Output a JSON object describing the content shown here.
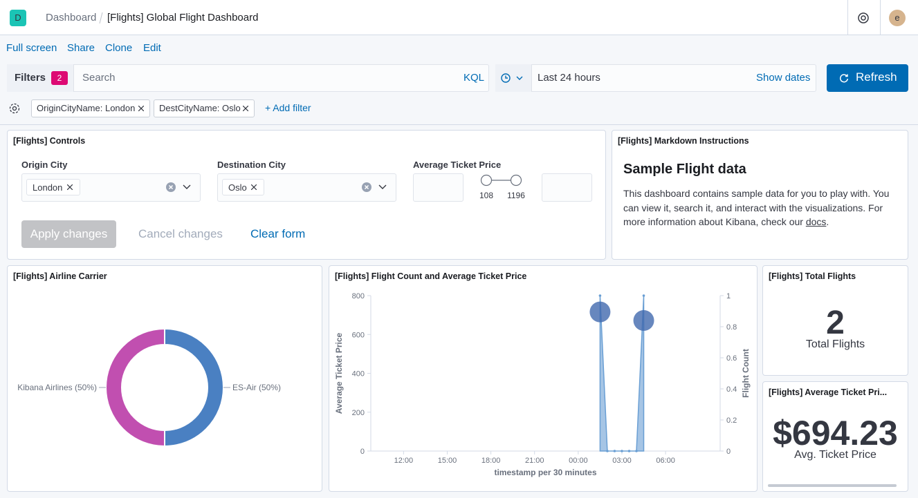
{
  "header": {
    "logo": "D",
    "breadcrumbs": [
      "Dashboard",
      "[Flights] Global Flight Dashboard"
    ],
    "avatar": "e"
  },
  "menu": [
    "Full screen",
    "Share",
    "Clone",
    "Edit"
  ],
  "query_bar": {
    "filters_label": "Filters",
    "filter_count": 2,
    "search_placeholder": "Search",
    "language": "KQL",
    "time_range": "Last 24 hours",
    "show_dates": "Show dates",
    "refresh": "Refresh"
  },
  "filters": [
    "OriginCityName: London",
    "DestCityName: Oslo"
  ],
  "add_filter": "+ Add filter",
  "controls": {
    "title": "[Flights] Controls",
    "origin": {
      "label": "Origin City",
      "value": "London"
    },
    "destination": {
      "label": "Destination City",
      "value": "Oslo"
    },
    "price": {
      "label": "Average Ticket Price",
      "min": 108,
      "max": 1196
    },
    "apply": "Apply changes",
    "cancel": "Cancel changes",
    "clear": "Clear form"
  },
  "markdown": {
    "title": "[Flights] Markdown Instructions",
    "heading": "Sample Flight data",
    "text": "This dashboard contains sample data for you to play with. You can view it, search it, and interact with the visualizations. For more information about Kibana, check our ",
    "link": "docs",
    "end": "."
  },
  "total_flights": {
    "title": "[Flights] Total Flights",
    "value": 2,
    "label": "Total Flights"
  },
  "avg_price": {
    "title": "[Flights] Average Ticket Pri...",
    "value": "$694.23",
    "label": "Avg. Ticket Price"
  },
  "chart_data": [
    {
      "type": "pie",
      "title": "[Flights] Airline Carrier",
      "donut": true,
      "categories": [
        "ES-Air",
        "Kibana Airlines"
      ],
      "values": [
        50,
        50
      ],
      "value_labels": [
        "ES-Air (50%)",
        "Kibana Airlines (50%)"
      ],
      "colors": [
        "#4a80c2",
        "#c14fb0"
      ]
    },
    {
      "type": "line",
      "title": "[Flights] Flight Count and Average Ticket Price",
      "xlabel": "timestamp per 30 minutes",
      "x": [
        25.5,
        26,
        26.5,
        27,
        27.5,
        28,
        28.5
      ],
      "xlim": [
        9.75,
        33.75
      ],
      "xticks": [
        {
          "value": 12,
          "label": "12:00"
        },
        {
          "value": 15,
          "label": "15:00"
        },
        {
          "value": 18,
          "label": "18:00"
        },
        {
          "value": 21,
          "label": "21:00"
        },
        {
          "value": 24,
          "label": "00:00"
        },
        {
          "value": 27,
          "label": "03:00"
        },
        {
          "value": 30,
          "label": "06:00"
        }
      ],
      "ylim": [
        0,
        800
      ],
      "yticks": [
        0,
        200,
        400,
        600,
        800
      ],
      "y2lim": [
        0,
        1
      ],
      "y2ticks": [
        0,
        0.2,
        0.4,
        0.6,
        0.8,
        1
      ],
      "series": [
        {
          "name": "Flight Count",
          "color": "#6a9fd4",
          "axis": "y2",
          "style": "area",
          "values": [
            1,
            0,
            0,
            0,
            0,
            0,
            1
          ]
        },
        {
          "name": "Average Ticket Price",
          "color": "#4169ae",
          "style": "bubble",
          "values": [
            716,
            null,
            null,
            null,
            null,
            null,
            672
          ]
        }
      ]
    }
  ]
}
